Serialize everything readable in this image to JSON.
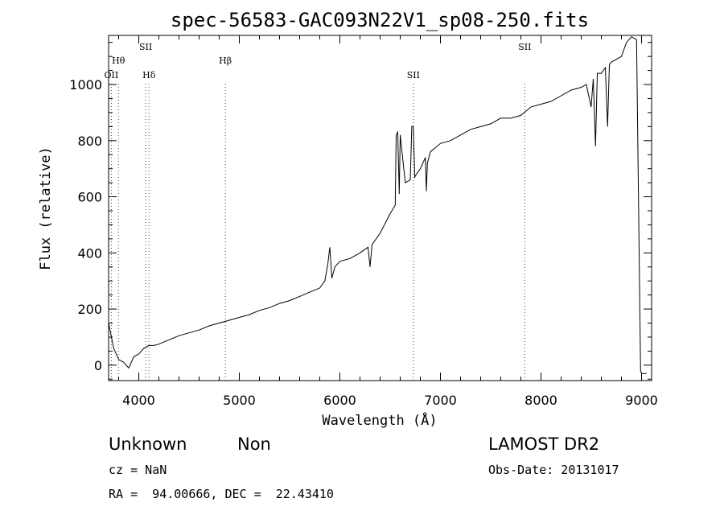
{
  "chart_data": {
    "type": "line",
    "title": "spec-56583-GAC093N22V1_sp08-250.fits",
    "xlabel": "Wavelength (Å)",
    "ylabel": "Flux (relative)",
    "xlim": [
      3700,
      9100
    ],
    "ylim": [
      -55,
      1175
    ],
    "xticks": [
      4000,
      5000,
      6000,
      7000,
      8000,
      9000
    ],
    "yticks": [
      0,
      200,
      400,
      600,
      800,
      1000
    ],
    "line_markers": [
      {
        "label": "OII",
        "x": 3727,
        "label_level": "low"
      },
      {
        "label": "Hθ",
        "x": 3798,
        "label_level": "mid"
      },
      {
        "label": "SII",
        "x": 4069,
        "label_level": "high"
      },
      {
        "label": "Hδ",
        "x": 4102,
        "label_level": "low"
      },
      {
        "label": "Hβ",
        "x": 4861,
        "label_level": "mid"
      },
      {
        "label": "SII",
        "x": 6731,
        "label_level": "low"
      },
      {
        "label": "SII",
        "x": 7839,
        "label_level": "high"
      }
    ],
    "series": [
      {
        "x": [
          3700,
          3750,
          3800,
          3850,
          3900,
          3950,
          4000,
          4050,
          4100,
          4150,
          4200,
          4300,
          4400,
          4500,
          4600,
          4700,
          4800,
          4900,
          5000,
          5100,
          5200,
          5300,
          5400,
          5500,
          5600,
          5700,
          5800,
          5850,
          5880,
          5900,
          5920,
          5950,
          6000,
          6100,
          6200,
          6280,
          6300,
          6320,
          6400,
          6500,
          6550,
          6560,
          6575,
          6590,
          6600,
          6650,
          6700,
          6715,
          6730,
          6745,
          6760,
          6800,
          6850,
          6860,
          6870,
          6900,
          7000,
          7100,
          7200,
          7300,
          7400,
          7500,
          7600,
          7700,
          7800,
          7900,
          8000,
          8100,
          8200,
          8300,
          8400,
          8450,
          8498,
          8520,
          8542,
          8560,
          8600,
          8640,
          8662,
          8680,
          8700,
          8800,
          8850,
          8900,
          8950,
          8990,
          9000,
          9020,
          9050
        ],
        "y": [
          150,
          60,
          20,
          10,
          -10,
          30,
          40,
          60,
          70,
          70,
          75,
          90,
          105,
          115,
          125,
          140,
          150,
          160,
          170,
          180,
          195,
          205,
          220,
          230,
          245,
          260,
          275,
          300,
          360,
          420,
          310,
          350,
          370,
          380,
          400,
          420,
          350,
          430,
          470,
          540,
          570,
          820,
          830,
          610,
          820,
          650,
          660,
          850,
          850,
          670,
          680,
          700,
          740,
          620,
          720,
          760,
          790,
          800,
          820,
          840,
          850,
          860,
          880,
          880,
          890,
          920,
          930,
          940,
          960,
          980,
          990,
          1000,
          920,
          1020,
          780,
          1040,
          1040,
          1060,
          850,
          1070,
          1080,
          1100,
          1150,
          1170,
          1160,
          -20,
          -30,
          -30,
          -30
        ]
      }
    ]
  },
  "info": {
    "class": "Unknown",
    "subclass": "Non",
    "survey": "LAMOST DR2",
    "redshift": "cz = NaN",
    "obsdate": "Obs-Date: 20131017",
    "coords": "RA =  94.00666, DEC =  22.43410"
  }
}
